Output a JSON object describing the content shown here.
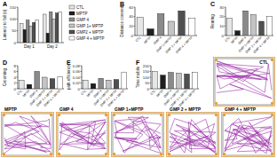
{
  "chart_data": [
    {
      "type": "bar",
      "title": "A",
      "ylabel": "Latency to fall (s)",
      "categories": [
        "Day 1",
        "Day 2"
      ],
      "series": [
        {
          "name": "CTL",
          "color": "#e6e6e6",
          "values": [
            80,
            120
          ]
        },
        {
          "name": "MPTP",
          "color": "#1f1f1f",
          "values": [
            55,
            40
          ]
        },
        {
          "name": "GMP 4",
          "color": "#8a8a8a",
          "values": [
            95,
            130
          ]
        },
        {
          "name": "GMP 1+ MPTP",
          "color": "#c4c4c4",
          "values": [
            70,
            100
          ]
        },
        {
          "name": "GMP2 + MPTP",
          "color": "#505050",
          "values": [
            85,
            125
          ]
        },
        {
          "name": "GMP 4 + MPTP",
          "color": "#ffffff",
          "values": [
            95,
            130
          ]
        }
      ],
      "ylim": [
        0,
        150
      ],
      "yticks": [
        0,
        50,
        100,
        150
      ],
      "legend": "right"
    },
    {
      "type": "bar",
      "title": "B",
      "ylabel": "Distance covered",
      "categories": [
        "CTL",
        "MPTP",
        "GMP 4",
        "GMP 1+MPTP",
        "GMP 2 + MPTP",
        "GMP 4 + MPTP"
      ],
      "values": [
        38,
        14,
        46,
        30,
        52,
        36
      ],
      "colors": [
        "#e6e6e6",
        "#1f1f1f",
        "#8a8a8a",
        "#c4c4c4",
        "#505050",
        "#ffffff"
      ],
      "ylim": [
        0,
        60
      ],
      "yticks": [
        0,
        20,
        40,
        60
      ]
    },
    {
      "type": "bar",
      "title": "C",
      "ylabel": "Rearing",
      "categories": [
        "CTL",
        "MPTP",
        "GMP 4",
        "GMP 1+MPTP",
        "GMP 2 + MPTP",
        "GMP 4 + MPTP"
      ],
      "values": [
        18,
        5,
        26,
        22,
        15,
        20
      ],
      "colors": [
        "#e6e6e6",
        "#1f1f1f",
        "#8a8a8a",
        "#c4c4c4",
        "#505050",
        "#ffffff"
      ],
      "ylim": [
        0,
        30
      ],
      "yticks": [
        0,
        10,
        20,
        30
      ]
    },
    {
      "type": "bar",
      "title": "D",
      "ylabel": "Grooming",
      "categories": [
        "CTL",
        "MPTP",
        "GMP 4",
        "GMP 1+MPTP",
        "GMP 2 + MPTP",
        "GMP 4 + MPTP"
      ],
      "values": [
        3,
        1.5,
        6,
        4,
        3.5,
        4.2
      ],
      "colors": [
        "#e6e6e6",
        "#1f1f1f",
        "#8a8a8a",
        "#c4c4c4",
        "#505050",
        "#ffffff"
      ],
      "ylim": [
        0,
        8
      ],
      "yticks": [
        0,
        2,
        4,
        6,
        8
      ]
    },
    {
      "type": "bar",
      "title": "E",
      "ylabel": "path efficiency",
      "categories": [
        "CTL",
        "MPTP",
        "GMP 4",
        "GMP 1+MPTP",
        "GMP 2 + MPTP",
        "GMP 4 + MPTP"
      ],
      "values": [
        0.03,
        0.018,
        0.036,
        0.03,
        0.032,
        0.058
      ],
      "colors": [
        "#e6e6e6",
        "#1f1f1f",
        "#8a8a8a",
        "#c4c4c4",
        "#505050",
        "#ffffff"
      ],
      "ylim": [
        0,
        0.08
      ],
      "yticks": [
        0,
        0.02,
        0.04,
        0.06,
        0.08
      ]
    },
    {
      "type": "bar",
      "title": "F",
      "ylabel": "Time mobile",
      "categories": [
        "CTL",
        "MPTP",
        "GMP 4",
        "GMP 1+MPTP",
        "GMP 2 + MPTP",
        "GMP 4 + MPTP"
      ],
      "values": [
        150,
        118,
        142,
        135,
        128,
        140
      ],
      "colors": [
        "#e6e6e6",
        "#1f1f1f",
        "#8a8a8a",
        "#c4c4c4",
        "#505050",
        "#ffffff"
      ],
      "ylim": [
        0,
        200
      ],
      "yticks": [
        0,
        50,
        100,
        150,
        200
      ]
    }
  ],
  "trajectories": {
    "labels": [
      "CTL",
      "MPTP",
      "GMP 4",
      "GMP 1+MPTP",
      "GMP 2 + MPTP",
      "GMP 4 + MPTP"
    ]
  }
}
